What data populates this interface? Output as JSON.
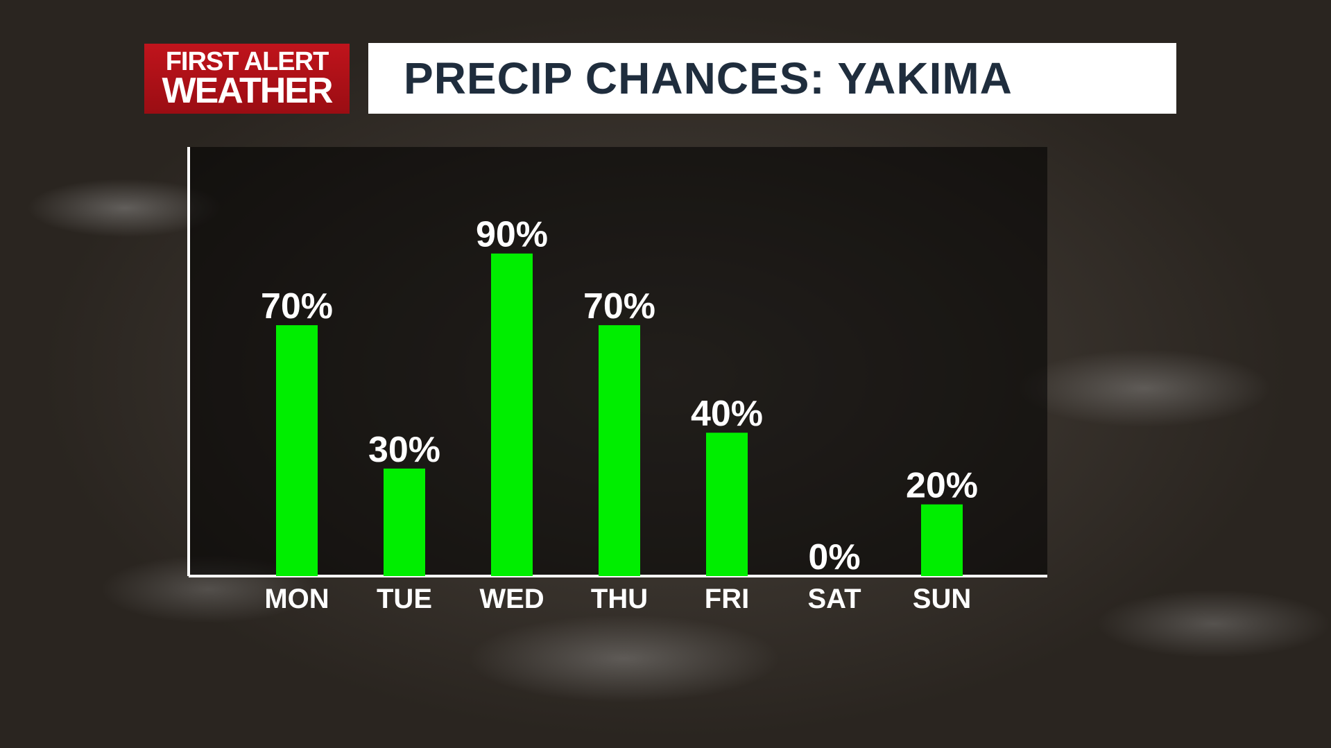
{
  "logo": {
    "line1": "FIRST ALERT",
    "line2": "WEATHER"
  },
  "colors": {
    "bar": "#00ee00",
    "logo_red": "#c0141c",
    "title_text": "#1f2d3d"
  },
  "chart_data": {
    "type": "bar",
    "title": "PRECIP CHANCES: YAKIMA",
    "categories": [
      "MON",
      "TUE",
      "WED",
      "THU",
      "FRI",
      "SAT",
      "SUN"
    ],
    "values": [
      70,
      30,
      90,
      70,
      40,
      0,
      20
    ],
    "value_labels": [
      "70%",
      "30%",
      "90%",
      "70%",
      "40%",
      "0%",
      "20%"
    ],
    "ylim": [
      0,
      100
    ],
    "grid": false,
    "legend": "none"
  }
}
